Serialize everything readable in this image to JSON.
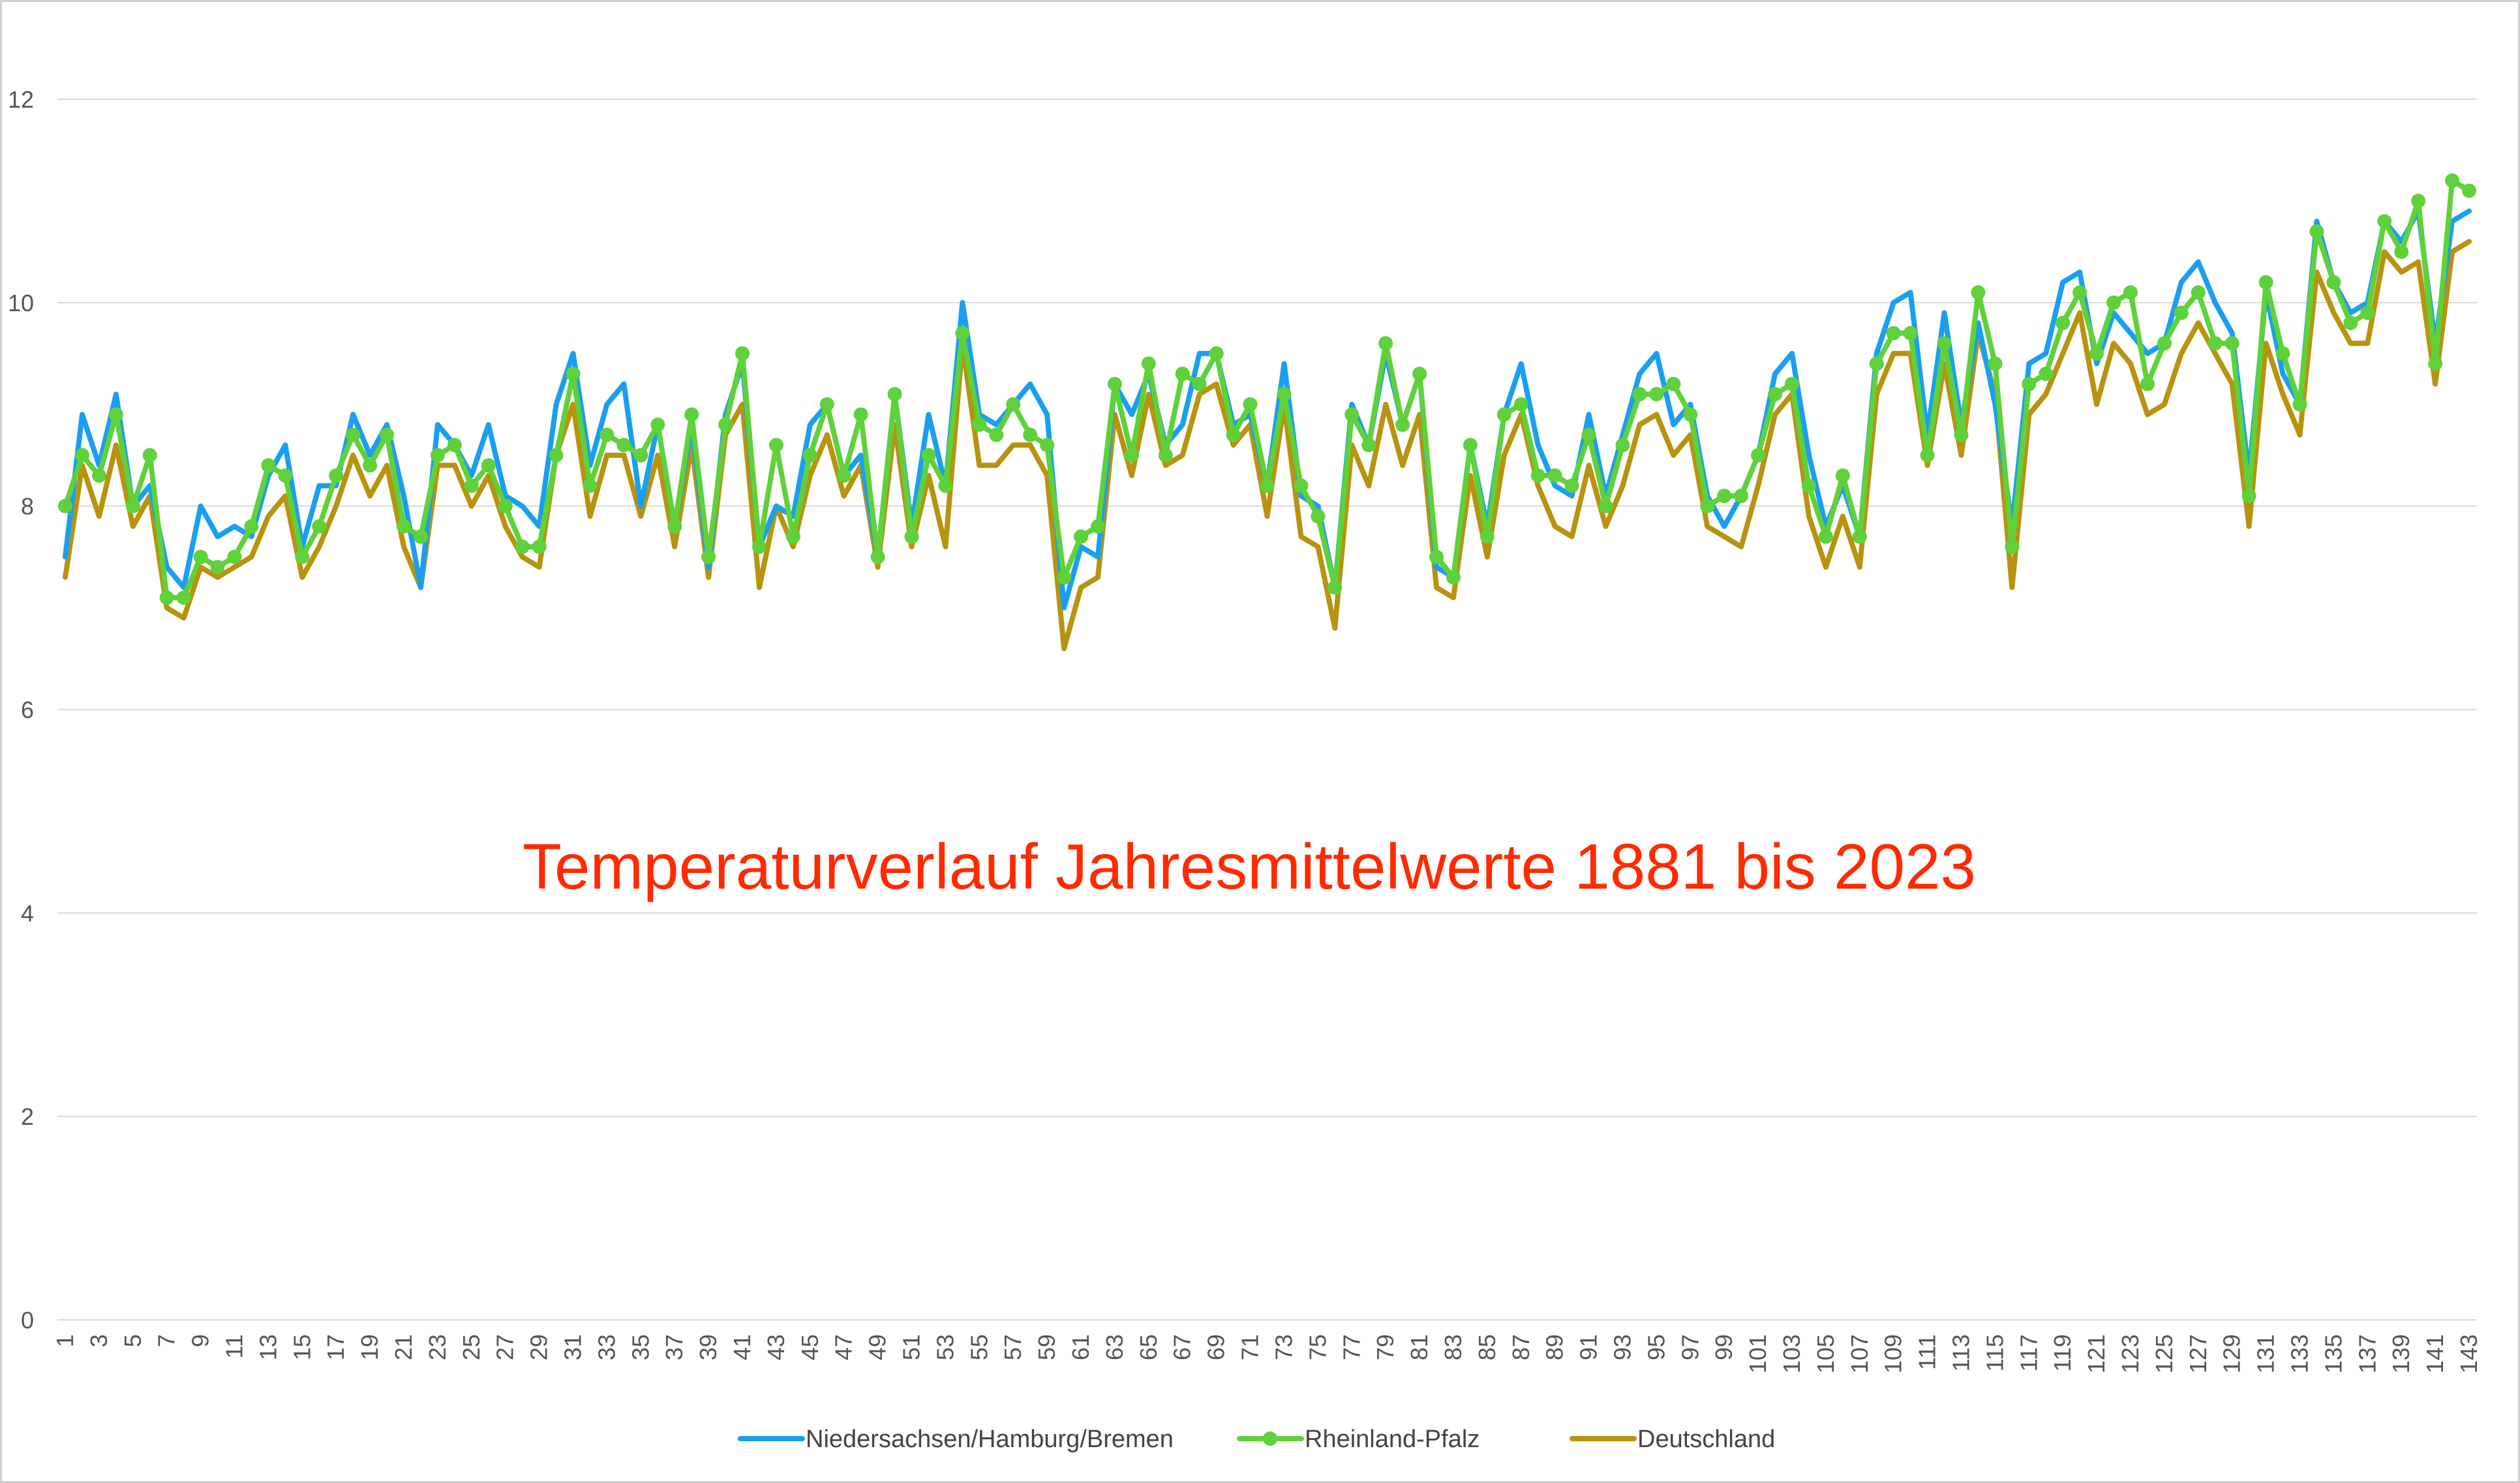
{
  "colors": {
    "background": "#ffffff",
    "grid": "#d9d9d9",
    "frame": "#d0d0d0",
    "title": "#ff2a00",
    "series": [
      "#1a9ff0",
      "#5fd13a",
      "#b8930f"
    ]
  },
  "chart_data": {
    "type": "line",
    "title": "Temperaturverlauf Jahresmittelwerte 1881 bis 2023",
    "xlabel": "",
    "ylabel": "",
    "ylim": [
      0,
      12
    ],
    "yticks": [
      "0",
      "2",
      "4",
      "6",
      "8",
      "10",
      "12"
    ],
    "x_count": 143,
    "x_tick_step": 2,
    "grid": "horizontal",
    "legend_position": "bottom",
    "series": [
      {
        "name": "Niedersachsen/Hamburg/Bremen",
        "marker": "none",
        "values": [
          7.5,
          8.9,
          8.4,
          9.1,
          8.0,
          8.2,
          7.4,
          7.2,
          8.0,
          7.7,
          7.8,
          7.7,
          8.3,
          8.6,
          7.6,
          8.2,
          8.2,
          8.9,
          8.5,
          8.8,
          8.1,
          7.2,
          8.8,
          8.6,
          8.3,
          8.8,
          8.1,
          8.0,
          7.8,
          9.0,
          9.5,
          8.4,
          9.0,
          9.2,
          8.0,
          8.8,
          7.8,
          8.8,
          7.4,
          8.9,
          9.4,
          7.6,
          8.0,
          7.9,
          8.8,
          9.0,
          8.3,
          8.5,
          7.5,
          9.1,
          7.8,
          8.9,
          8.2,
          10.0,
          8.9,
          8.8,
          9.0,
          9.2,
          8.9,
          7.0,
          7.6,
          7.5,
          9.2,
          8.9,
          9.3,
          8.6,
          8.8,
          9.5,
          9.5,
          8.8,
          8.9,
          8.2,
          9.4,
          8.1,
          8.0,
          7.2,
          9.0,
          8.6,
          9.5,
          8.8,
          9.3,
          7.4,
          7.3,
          8.6,
          7.8,
          8.9,
          9.4,
          8.6,
          8.2,
          8.1,
          8.9,
          8.1,
          8.7,
          9.3,
          9.5,
          8.8,
          9.0,
          8.1,
          7.8,
          8.1,
          8.5,
          9.3,
          9.5,
          8.5,
          7.8,
          8.2,
          7.7,
          9.5,
          10.0,
          10.1,
          8.7,
          9.9,
          8.8,
          9.8,
          9.0,
          7.8,
          9.4,
          9.5,
          10.2,
          10.3,
          9.4,
          9.9,
          9.7,
          9.5,
          9.6,
          10.2,
          10.4,
          10.0,
          9.7,
          8.3,
          10.1,
          9.3,
          9.0,
          10.8,
          10.2,
          9.9,
          10.0,
          10.8,
          10.6,
          10.9,
          9.6,
          10.8,
          10.9
        ]
      },
      {
        "name": "Rheinland-Pfalz",
        "marker": "circle",
        "values": [
          8.0,
          8.5,
          8.3,
          8.9,
          8.0,
          8.5,
          7.1,
          7.1,
          7.5,
          7.4,
          7.5,
          7.8,
          8.4,
          8.3,
          7.5,
          7.8,
          8.3,
          8.7,
          8.4,
          8.7,
          7.8,
          7.7,
          8.5,
          8.6,
          8.2,
          8.4,
          8.0,
          7.6,
          7.6,
          8.5,
          9.3,
          8.2,
          8.7,
          8.6,
          8.5,
          8.8,
          7.8,
          8.9,
          7.5,
          8.8,
          9.5,
          7.6,
          8.6,
          7.7,
          8.5,
          9.0,
          8.3,
          8.9,
          7.5,
          9.1,
          7.7,
          8.5,
          8.2,
          9.7,
          8.8,
          8.7,
          9.0,
          8.7,
          8.6,
          7.3,
          7.7,
          7.8,
          9.2,
          8.5,
          9.4,
          8.5,
          9.3,
          9.2,
          9.5,
          8.7,
          9.0,
          8.2,
          9.1,
          8.2,
          7.9,
          7.2,
          8.9,
          8.6,
          9.6,
          8.8,
          9.3,
          7.5,
          7.3,
          8.6,
          7.7,
          8.9,
          9.0,
          8.3,
          8.3,
          8.2,
          8.7,
          8.0,
          8.6,
          9.1,
          9.1,
          9.2,
          8.9,
          8.0,
          8.1,
          8.1,
          8.5,
          9.1,
          9.2,
          8.2,
          7.7,
          8.3,
          7.7,
          9.4,
          9.7,
          9.7,
          8.5,
          9.6,
          8.7,
          10.1,
          9.4,
          7.6,
          9.2,
          9.3,
          9.8,
          10.1,
          9.5,
          10.0,
          10.1,
          9.2,
          9.6,
          9.9,
          10.1,
          9.6,
          9.6,
          8.1,
          10.2,
          9.5,
          9.0,
          10.7,
          10.2,
          9.8,
          9.9,
          10.8,
          10.5,
          11.0,
          9.4,
          11.2,
          11.1
        ]
      },
      {
        "name": "Deutschland",
        "marker": "none",
        "values": [
          7.3,
          8.4,
          7.9,
          8.6,
          7.8,
          8.1,
          7.0,
          6.9,
          7.4,
          7.3,
          7.4,
          7.5,
          7.9,
          8.1,
          7.3,
          7.6,
          8.0,
          8.5,
          8.1,
          8.4,
          7.6,
          7.2,
          8.4,
          8.4,
          8.0,
          8.3,
          7.8,
          7.5,
          7.4,
          8.5,
          9.0,
          7.9,
          8.5,
          8.5,
          7.9,
          8.5,
          7.6,
          8.6,
          7.3,
          8.7,
          9.0,
          7.2,
          8.0,
          7.6,
          8.3,
          8.7,
          8.1,
          8.4,
          7.4,
          8.8,
          7.6,
          8.3,
          7.6,
          9.6,
          8.4,
          8.4,
          8.6,
          8.6,
          8.3,
          6.6,
          7.2,
          7.3,
          8.9,
          8.3,
          9.1,
          8.4,
          8.5,
          9.1,
          9.2,
          8.6,
          8.8,
          7.9,
          9.0,
          7.7,
          7.6,
          6.8,
          8.6,
          8.2,
          9.0,
          8.4,
          8.9,
          7.2,
          7.1,
          8.3,
          7.5,
          8.5,
          8.9,
          8.2,
          7.8,
          7.7,
          8.4,
          7.8,
          8.2,
          8.8,
          8.9,
          8.5,
          8.7,
          7.8,
          7.7,
          7.6,
          8.2,
          8.9,
          9.1,
          7.9,
          7.4,
          7.9,
          7.4,
          9.1,
          9.5,
          9.5,
          8.4,
          9.4,
          8.5,
          9.7,
          9.1,
          7.2,
          8.9,
          9.1,
          9.5,
          9.9,
          9.0,
          9.6,
          9.4,
          8.9,
          9.0,
          9.5,
          9.8,
          9.5,
          9.2,
          7.8,
          9.6,
          9.1,
          8.7,
          10.3,
          9.9,
          9.6,
          9.6,
          10.5,
          10.3,
          10.4,
          9.2,
          10.5,
          10.6
        ]
      }
    ]
  }
}
